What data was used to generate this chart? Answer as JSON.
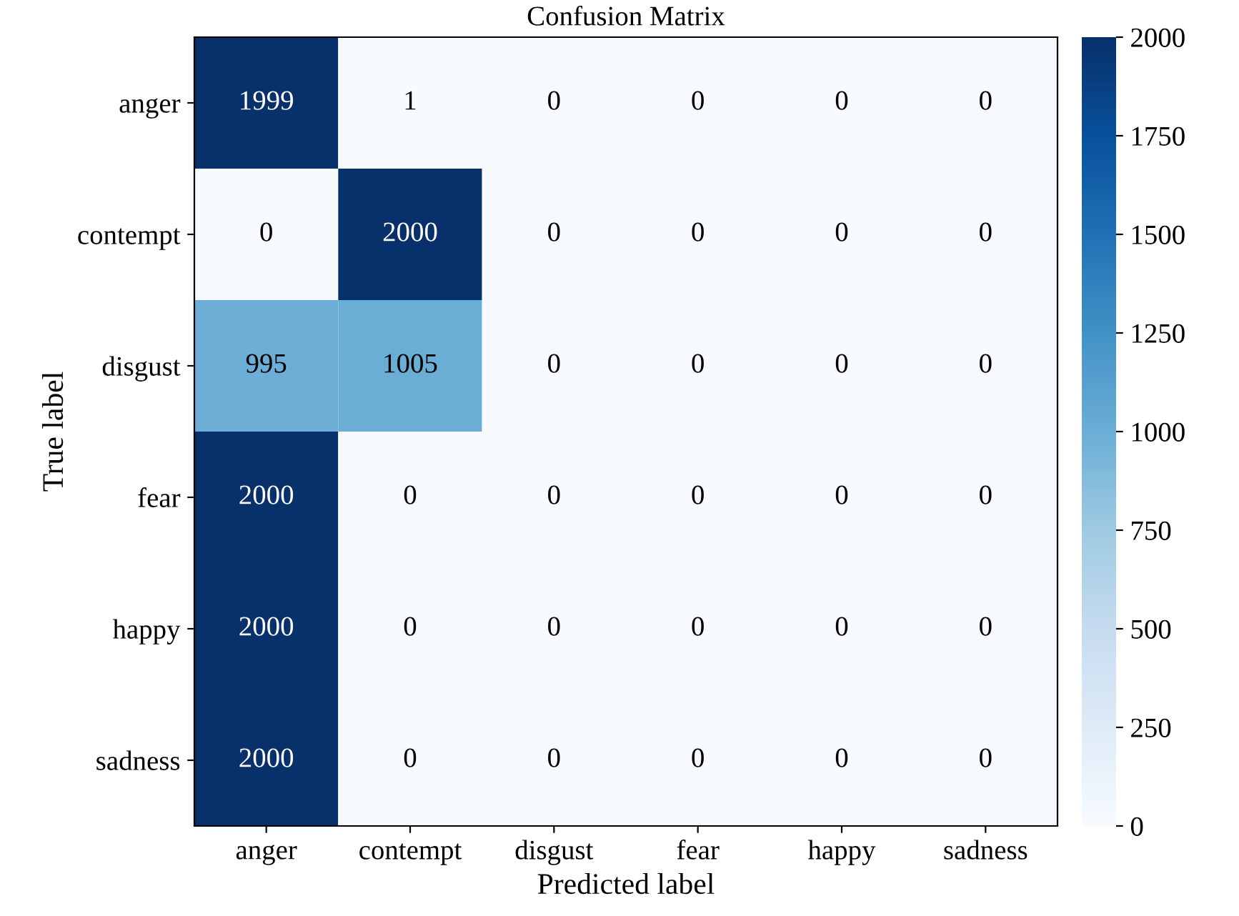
{
  "chart_data": {
    "type": "heatmap",
    "title": "Confusion Matrix",
    "xlabel": "Predicted label",
    "ylabel": "True label",
    "categories": [
      "anger",
      "contempt",
      "disgust",
      "fear",
      "happy",
      "sadness"
    ],
    "y_categories": [
      "anger",
      "contempt",
      "disgust",
      "fear",
      "happy",
      "sadness"
    ],
    "cells": [
      [
        1999,
        1,
        0,
        0,
        0,
        0
      ],
      [
        0,
        2000,
        0,
        0,
        0,
        0
      ],
      [
        995,
        1005,
        0,
        0,
        0,
        0
      ],
      [
        2000,
        0,
        0,
        0,
        0,
        0
      ],
      [
        2000,
        0,
        0,
        0,
        0,
        0
      ],
      [
        2000,
        0,
        0,
        0,
        0,
        0
      ]
    ],
    "data_labels": true,
    "clim": [
      0,
      2000
    ],
    "cticks": [
      0,
      250,
      500,
      750,
      1000,
      1250,
      1500,
      1750,
      2000
    ]
  }
}
